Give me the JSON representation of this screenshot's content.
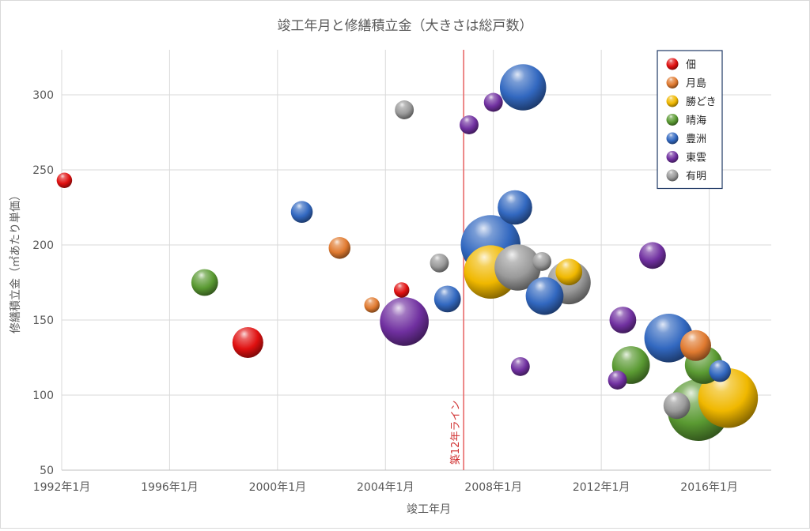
{
  "chart_data": {
    "type": "bubble",
    "title": "竣工年月と修繕積立金（大きさは総戸数）",
    "xlabel": "竣工年月",
    "ylabel": "修繕積立金（㎡あたり単価）",
    "x_ticks": [
      "1992年1月",
      "1996年1月",
      "2000年1月",
      "2004年1月",
      "2008年1月",
      "2012年1月",
      "2016年1月"
    ],
    "x_tick_years": [
      1992,
      1996,
      2000,
      2004,
      2008,
      2012,
      2016
    ],
    "xlim": [
      1992,
      2018.3
    ],
    "ylim": [
      50,
      330
    ],
    "y_ticks": [
      50,
      100,
      150,
      200,
      250,
      300
    ],
    "grid": true,
    "legend_position": "top-right",
    "reference_line": {
      "x": 2006.9,
      "label": "築12年ライン",
      "color": "#e86a6a"
    },
    "series": [
      {
        "name": "佃",
        "color": "#e01010",
        "points": [
          {
            "x": 1992.1,
            "y": 243,
            "size": 1
          },
          {
            "x": 1998.9,
            "y": 135,
            "size": 4
          },
          {
            "x": 2004.6,
            "y": 170,
            "size": 1
          }
        ]
      },
      {
        "name": "月島",
        "color": "#e07a30",
        "points": [
          {
            "x": 2002.3,
            "y": 198,
            "size": 2
          },
          {
            "x": 2003.5,
            "y": 160,
            "size": 1
          },
          {
            "x": 2015.5,
            "y": 133,
            "size": 4
          }
        ]
      },
      {
        "name": "勝どき",
        "color": "#f0b800",
        "points": [
          {
            "x": 2007.9,
            "y": 182,
            "size": 12
          },
          {
            "x": 2010.8,
            "y": 182,
            "size": 3
          },
          {
            "x": 2016.7,
            "y": 98,
            "size": 15
          }
        ]
      },
      {
        "name": "晴海",
        "color": "#5a9a32",
        "points": [
          {
            "x": 1997.3,
            "y": 175,
            "size": 3
          },
          {
            "x": 2013.1,
            "y": 120,
            "size": 6
          },
          {
            "x": 2015.8,
            "y": 120,
            "size": 6
          },
          {
            "x": 2015.6,
            "y": 90,
            "size": 16
          }
        ]
      },
      {
        "name": "豊洲",
        "color": "#3268c0",
        "points": [
          {
            "x": 2000.9,
            "y": 222,
            "size": 2
          },
          {
            "x": 2006.3,
            "y": 164,
            "size": 3
          },
          {
            "x": 2009.1,
            "y": 305,
            "size": 9
          },
          {
            "x": 2008.8,
            "y": 225,
            "size": 5
          },
          {
            "x": 2007.9,
            "y": 200,
            "size": 15
          },
          {
            "x": 2009.9,
            "y": 166,
            "size": 6
          },
          {
            "x": 2014.5,
            "y": 138,
            "size": 10
          },
          {
            "x": 2016.4,
            "y": 116,
            "size": 2
          }
        ]
      },
      {
        "name": "東雲",
        "color": "#7030a0",
        "points": [
          {
            "x": 2004.7,
            "y": 149,
            "size": 10
          },
          {
            "x": 2007.1,
            "y": 280,
            "size": 1.5
          },
          {
            "x": 2008.0,
            "y": 295,
            "size": 1.5
          },
          {
            "x": 2009.0,
            "y": 119,
            "size": 1.5
          },
          {
            "x": 2012.8,
            "y": 150,
            "size": 3
          },
          {
            "x": 2012.6,
            "y": 110,
            "size": 1.5
          },
          {
            "x": 2013.9,
            "y": 193,
            "size": 3
          }
        ]
      },
      {
        "name": "有明",
        "color": "#9a9a9a",
        "points": [
          {
            "x": 2004.7,
            "y": 290,
            "size": 1.5
          },
          {
            "x": 2006.0,
            "y": 188,
            "size": 1.5
          },
          {
            "x": 2008.9,
            "y": 185,
            "size": 9
          },
          {
            "x": 2009.8,
            "y": 189,
            "size": 1.5
          },
          {
            "x": 2010.8,
            "y": 175,
            "size": 8
          },
          {
            "x": 2014.8,
            "y": 93,
            "size": 3
          }
        ]
      }
    ]
  }
}
